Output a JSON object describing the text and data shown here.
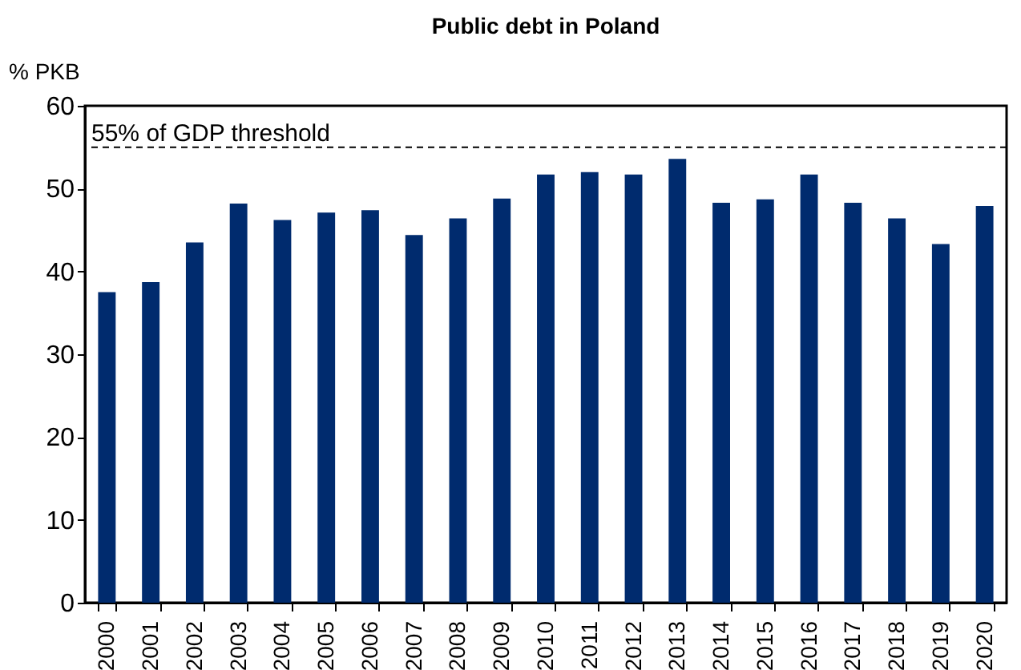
{
  "chart_data": {
    "type": "bar",
    "title": "Public debt in Poland",
    "ylabel": "% PKB",
    "categories": [
      "2000",
      "2001",
      "2002",
      "2003",
      "2004",
      "2005",
      "2006",
      "2007",
      "2008",
      "2009",
      "2010",
      "2011",
      "2012",
      "2013",
      "2014",
      "2015",
      "2016",
      "2017",
      "2018",
      "2019",
      "2020"
    ],
    "values": [
      37.5,
      38.7,
      43.5,
      48.2,
      46.2,
      47.1,
      47.4,
      44.4,
      46.4,
      48.8,
      51.7,
      52.0,
      51.7,
      53.6,
      48.3,
      48.7,
      51.7,
      48.3,
      46.4,
      43.3,
      47.9
    ],
    "color": "#002b6e",
    "ylim": [
      0,
      60
    ],
    "yticks": [
      0,
      10,
      20,
      30,
      40,
      50,
      60
    ],
    "grid": false,
    "ref_lines": [
      {
        "axis": "y",
        "value": 55,
        "label": "55% of GDP threshold",
        "color": "#000000",
        "line_style": "dashed"
      }
    ]
  }
}
